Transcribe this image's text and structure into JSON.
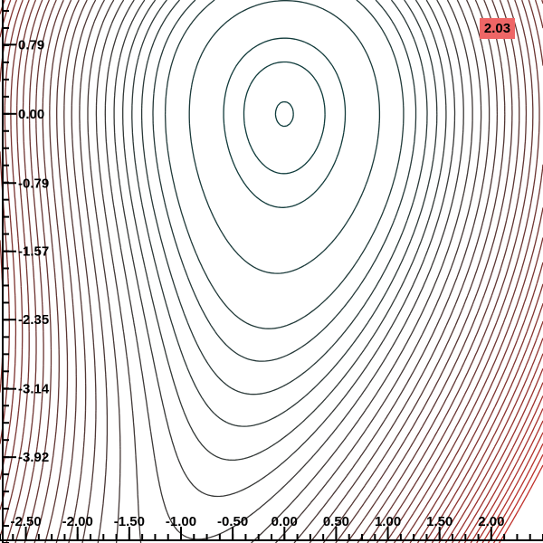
{
  "chart_data": {
    "type": "contour",
    "title": "",
    "xlabel": "",
    "ylabel": "",
    "xlim": [
      -2.75,
      2.5
    ],
    "ylim": [
      -4.9,
      1.3
    ],
    "x_ticks": [
      "-2.50",
      "-2.00",
      "-1.50",
      "-1.00",
      "-0.50",
      "0.00",
      "0.50",
      "1.00",
      "1.50",
      "2.00"
    ],
    "y_ticks": [
      "0.79",
      "0.00",
      "-0.79",
      "-1.57",
      "-2.35",
      "-3.14",
      "-3.92"
    ],
    "value_badge": "2.03",
    "minimum": {
      "x": 0.0,
      "y": 0.0
    },
    "closed_levels": [
      0.02,
      0.4,
      0.9,
      2.2
    ],
    "open_levels": [
      3.45,
      4.2,
      4.95,
      5.65,
      6.35,
      7.05,
      7.8,
      8.6,
      9.4,
      10.2,
      11.0,
      11.8,
      12.6,
      13.4,
      14.2,
      15.0,
      15.8,
      16.6,
      17.4,
      18.2,
      19.0,
      19.8,
      20.6,
      21.4,
      22.2,
      23.0,
      23.8,
      24.6,
      25.4,
      26.2,
      27.0,
      27.8,
      28.6,
      29.4,
      30.2
    ],
    "colors": {
      "low": "#0d3b3b",
      "high": "#c0302a",
      "badge": "#ee6666"
    },
    "grid": false,
    "legend": "none"
  }
}
